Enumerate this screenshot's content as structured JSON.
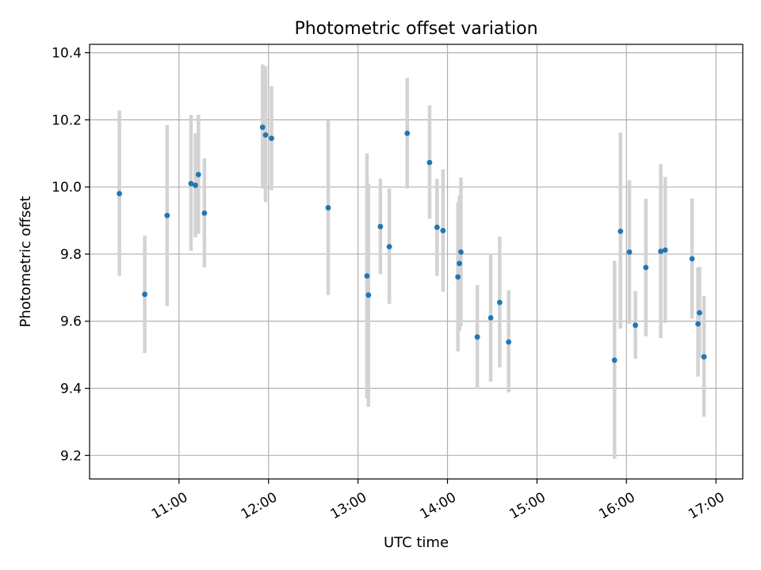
{
  "chart_data": {
    "type": "scatter",
    "title": "Photometric offset variation",
    "xlabel": "UTC time",
    "ylabel": "Photometric offset",
    "xlim": [
      "10:00",
      "17:18"
    ],
    "ylim": [
      9.13,
      10.425
    ],
    "grid": true,
    "xticks": [
      "11:00",
      "12:00",
      "13:00",
      "14:00",
      "15:00",
      "16:00",
      "17:00"
    ],
    "yticks": [
      "9.2",
      "9.4",
      "9.6",
      "9.8",
      "10.0",
      "10.2",
      "10.4"
    ],
    "colors": {
      "point": "#1f77b4",
      "errorbar": "#d3d3d3",
      "grid": "#b0b0b0"
    },
    "series": [
      {
        "points": [
          {
            "x": "10:20",
            "y": 9.98,
            "low": 9.735,
            "high": 10.228
          },
          {
            "x": "10:37",
            "y": 9.68,
            "low": 9.505,
            "high": 9.855
          },
          {
            "x": "10:52",
            "y": 9.915,
            "low": 9.645,
            "high": 10.185
          },
          {
            "x": "11:08",
            "y": 10.01,
            "low": 9.81,
            "high": 10.215
          },
          {
            "x": "11:11",
            "y": 10.005,
            "low": 9.85,
            "high": 10.16
          },
          {
            "x": "11:13",
            "y": 10.037,
            "low": 9.86,
            "high": 10.215
          },
          {
            "x": "11:17",
            "y": 9.922,
            "low": 9.76,
            "high": 10.085
          },
          {
            "x": "11:56",
            "y": 10.178,
            "low": 9.995,
            "high": 10.365
          },
          {
            "x": "11:58",
            "y": 10.155,
            "low": 9.955,
            "high": 10.36
          },
          {
            "x": "12:02",
            "y": 10.145,
            "low": 9.99,
            "high": 10.3
          },
          {
            "x": "12:40",
            "y": 9.938,
            "low": 9.678,
            "high": 10.198
          },
          {
            "x": "13:06",
            "y": 9.735,
            "low": 9.37,
            "high": 10.1
          },
          {
            "x": "13:07",
            "y": 9.678,
            "low": 9.345,
            "high": 10.01
          },
          {
            "x": "13:15",
            "y": 9.882,
            "low": 9.74,
            "high": 10.025
          },
          {
            "x": "13:21",
            "y": 9.822,
            "low": 9.652,
            "high": 9.995
          },
          {
            "x": "13:33",
            "y": 10.16,
            "low": 9.995,
            "high": 10.325
          },
          {
            "x": "13:48",
            "y": 10.073,
            "low": 9.905,
            "high": 10.243
          },
          {
            "x": "13:53",
            "y": 9.88,
            "low": 9.735,
            "high": 10.025
          },
          {
            "x": "13:57",
            "y": 9.87,
            "low": 9.688,
            "high": 10.052
          },
          {
            "x": "14:07",
            "y": 9.732,
            "low": 9.51,
            "high": 9.955
          },
          {
            "x": "14:08",
            "y": 9.772,
            "low": 9.57,
            "high": 9.975
          },
          {
            "x": "14:09",
            "y": 9.806,
            "low": 9.585,
            "high": 10.028
          },
          {
            "x": "14:20",
            "y": 9.553,
            "low": 9.398,
            "high": 9.708
          },
          {
            "x": "14:29",
            "y": 9.61,
            "low": 9.42,
            "high": 9.802
          },
          {
            "x": "14:35",
            "y": 9.656,
            "low": 9.462,
            "high": 9.852
          },
          {
            "x": "14:41",
            "y": 9.538,
            "low": 9.388,
            "high": 9.692
          },
          {
            "x": "15:52",
            "y": 9.484,
            "low": 9.19,
            "high": 9.78
          },
          {
            "x": "15:56",
            "y": 9.868,
            "low": 9.578,
            "high": 10.162
          },
          {
            "x": "16:02",
            "y": 9.806,
            "low": 9.592,
            "high": 10.02
          },
          {
            "x": "16:06",
            "y": 9.588,
            "low": 9.488,
            "high": 9.69
          },
          {
            "x": "16:13",
            "y": 9.76,
            "low": 9.555,
            "high": 9.965
          },
          {
            "x": "16:23",
            "y": 9.808,
            "low": 9.55,
            "high": 10.068
          },
          {
            "x": "16:26",
            "y": 9.812,
            "low": 9.595,
            "high": 10.03
          },
          {
            "x": "16:44",
            "y": 9.786,
            "low": 9.608,
            "high": 9.966
          },
          {
            "x": "16:48",
            "y": 9.592,
            "low": 9.435,
            "high": 9.76
          },
          {
            "x": "16:49",
            "y": 9.625,
            "low": 9.49,
            "high": 9.762
          },
          {
            "x": "16:52",
            "y": 9.494,
            "low": 9.315,
            "high": 9.675
          }
        ]
      }
    ]
  }
}
